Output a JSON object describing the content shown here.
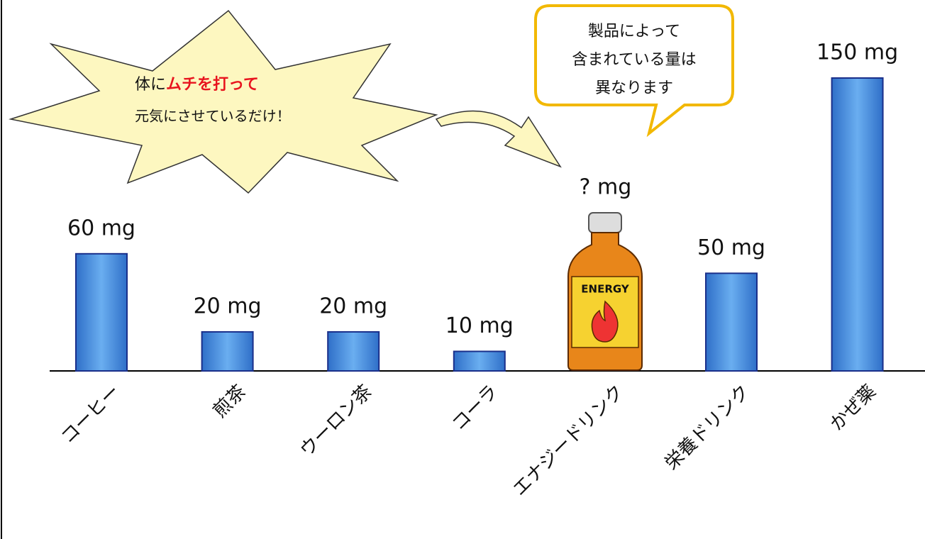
{
  "chart_data": {
    "type": "bar",
    "categories": [
      "コーヒー",
      "煎茶",
      "ウーロン茶",
      "コーラ",
      "エナジードリンク",
      "栄養ドリンク",
      "かぜ薬"
    ],
    "values": [
      60,
      20,
      20,
      10,
      null,
      50,
      150
    ],
    "value_labels": [
      "60 mg",
      "20 mg",
      "20 mg",
      "10 mg",
      "? mg",
      "50 mg",
      "150 mg"
    ],
    "color": "#4a8ee0",
    "annotations": {
      "burst": [
        "体に",
        "ムチを打って",
        "元気にさせているだけ！"
      ],
      "callout": [
        "製品によって",
        "含まれている量は",
        "異なります"
      ],
      "bottle": "ENERGY"
    }
  }
}
